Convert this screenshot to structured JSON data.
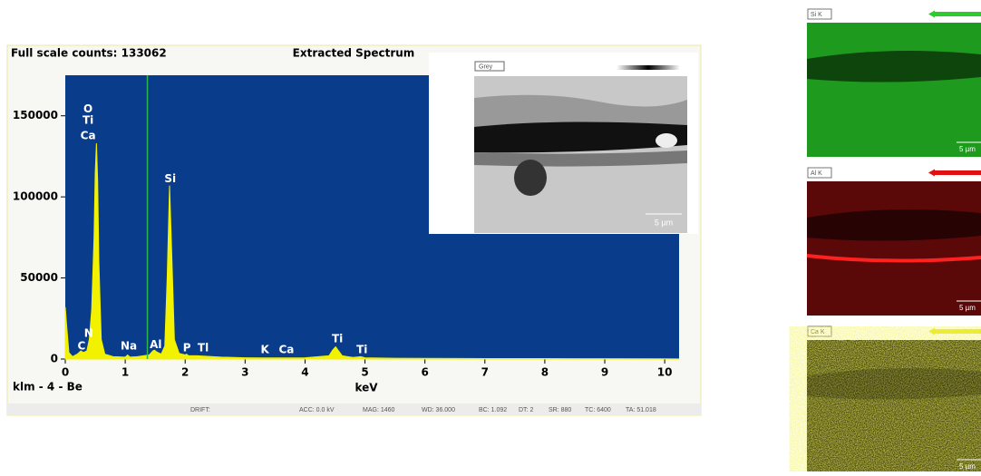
{
  "chart_data": {
    "type": "area",
    "title": "Extracted Spectrum",
    "counts_label": "Full scale counts: 133062",
    "detector_label": "klm - 4 - Be",
    "x_label": "keV",
    "color": "#f2f200",
    "background": "#0a3c8c",
    "cursor": 1.37,
    "cursor_color": "#2db84a",
    "x": [
      0,
      0.02,
      0.06,
      0.12,
      0.2,
      0.26,
      0.3,
      0.36,
      0.4,
      0.44,
      0.48,
      0.5,
      0.52,
      0.54,
      0.56,
      0.6,
      0.66,
      0.8,
      1.0,
      1.04,
      1.08,
      1.2,
      1.4,
      1.46,
      1.49,
      1.52,
      1.6,
      1.66,
      1.7,
      1.74,
      1.78,
      1.82,
      1.9,
      2.0,
      2.02,
      2.06,
      2.2,
      2.3,
      2.6,
      3.0,
      3.3,
      3.7,
      4.0,
      4.4,
      4.46,
      4.51,
      4.56,
      4.62,
      4.8,
      4.93,
      5.0,
      5.5,
      6,
      7,
      8,
      9,
      10,
      10.24
    ],
    "values": [
      32000,
      22000,
      4000,
      1500,
      3000,
      5000,
      4000,
      5000,
      12000,
      30000,
      75000,
      115000,
      133062,
      110000,
      60000,
      12000,
      3000,
      1500,
      1200,
      2500,
      1200,
      1500,
      2500,
      5000,
      5500,
      4500,
      3000,
      8000,
      50000,
      107000,
      60000,
      12000,
      3500,
      2500,
      3000,
      2000,
      2000,
      1800,
      1200,
      800,
      700,
      700,
      800,
      2000,
      5500,
      7500,
      5000,
      2000,
      1000,
      1500,
      800,
      500,
      400,
      300,
      250,
      200,
      150,
      100
    ],
    "xlim": [
      0,
      10.24
    ],
    "ylim": [
      0,
      175000
    ],
    "xticks": [
      0,
      1,
      2,
      3,
      4,
      5,
      6,
      7,
      8,
      9,
      10
    ],
    "yticks": [
      0,
      50000,
      100000,
      150000
    ],
    "annotations": [
      {
        "text": "O",
        "x": 0.38,
        "y": 154000
      },
      {
        "text": "Ti",
        "x": 0.38,
        "y": 147000
      },
      {
        "text": "Ca",
        "x": 0.38,
        "y": 137600
      },
      {
        "text": "Si",
        "x": 1.75,
        "y": 111000
      },
      {
        "text": "N",
        "x": 0.39,
        "y": 15700
      },
      {
        "text": "C",
        "x": 0.27,
        "y": 7900
      },
      {
        "text": "Na",
        "x": 1.06,
        "y": 7900
      },
      {
        "text": "Al",
        "x": 1.51,
        "y": 8800
      },
      {
        "text": "P",
        "x": 2.03,
        "y": 6700
      },
      {
        "text": "Tl",
        "x": 2.3,
        "y": 6700
      },
      {
        "text": "K",
        "x": 3.33,
        "y": 5600
      },
      {
        "text": "Ca",
        "x": 3.69,
        "y": 5600
      },
      {
        "text": "Ti",
        "x": 4.54,
        "y": 12400
      },
      {
        "text": "Ti",
        "x": 4.95,
        "y": 5600
      }
    ],
    "footer": [
      "DRIFT:",
      "ACC: 0.0 kV",
      "MAG: 1460",
      "WD: 36.000",
      "BC: 1.092",
      "DT: 2",
      "SR: 880",
      "TC: 6400",
      "TA: 51.018"
    ]
  },
  "inset": {
    "label": "Grey",
    "scale": "5 µm"
  },
  "maps": [
    {
      "label": "Si K",
      "scale": "5 µm",
      "color": "#2ccc2c"
    },
    {
      "label": "Al K",
      "scale": "5 µm",
      "color": "#e01010"
    },
    {
      "label": "Ca K",
      "scale": "5 µm",
      "color": "#e8e820"
    }
  ]
}
